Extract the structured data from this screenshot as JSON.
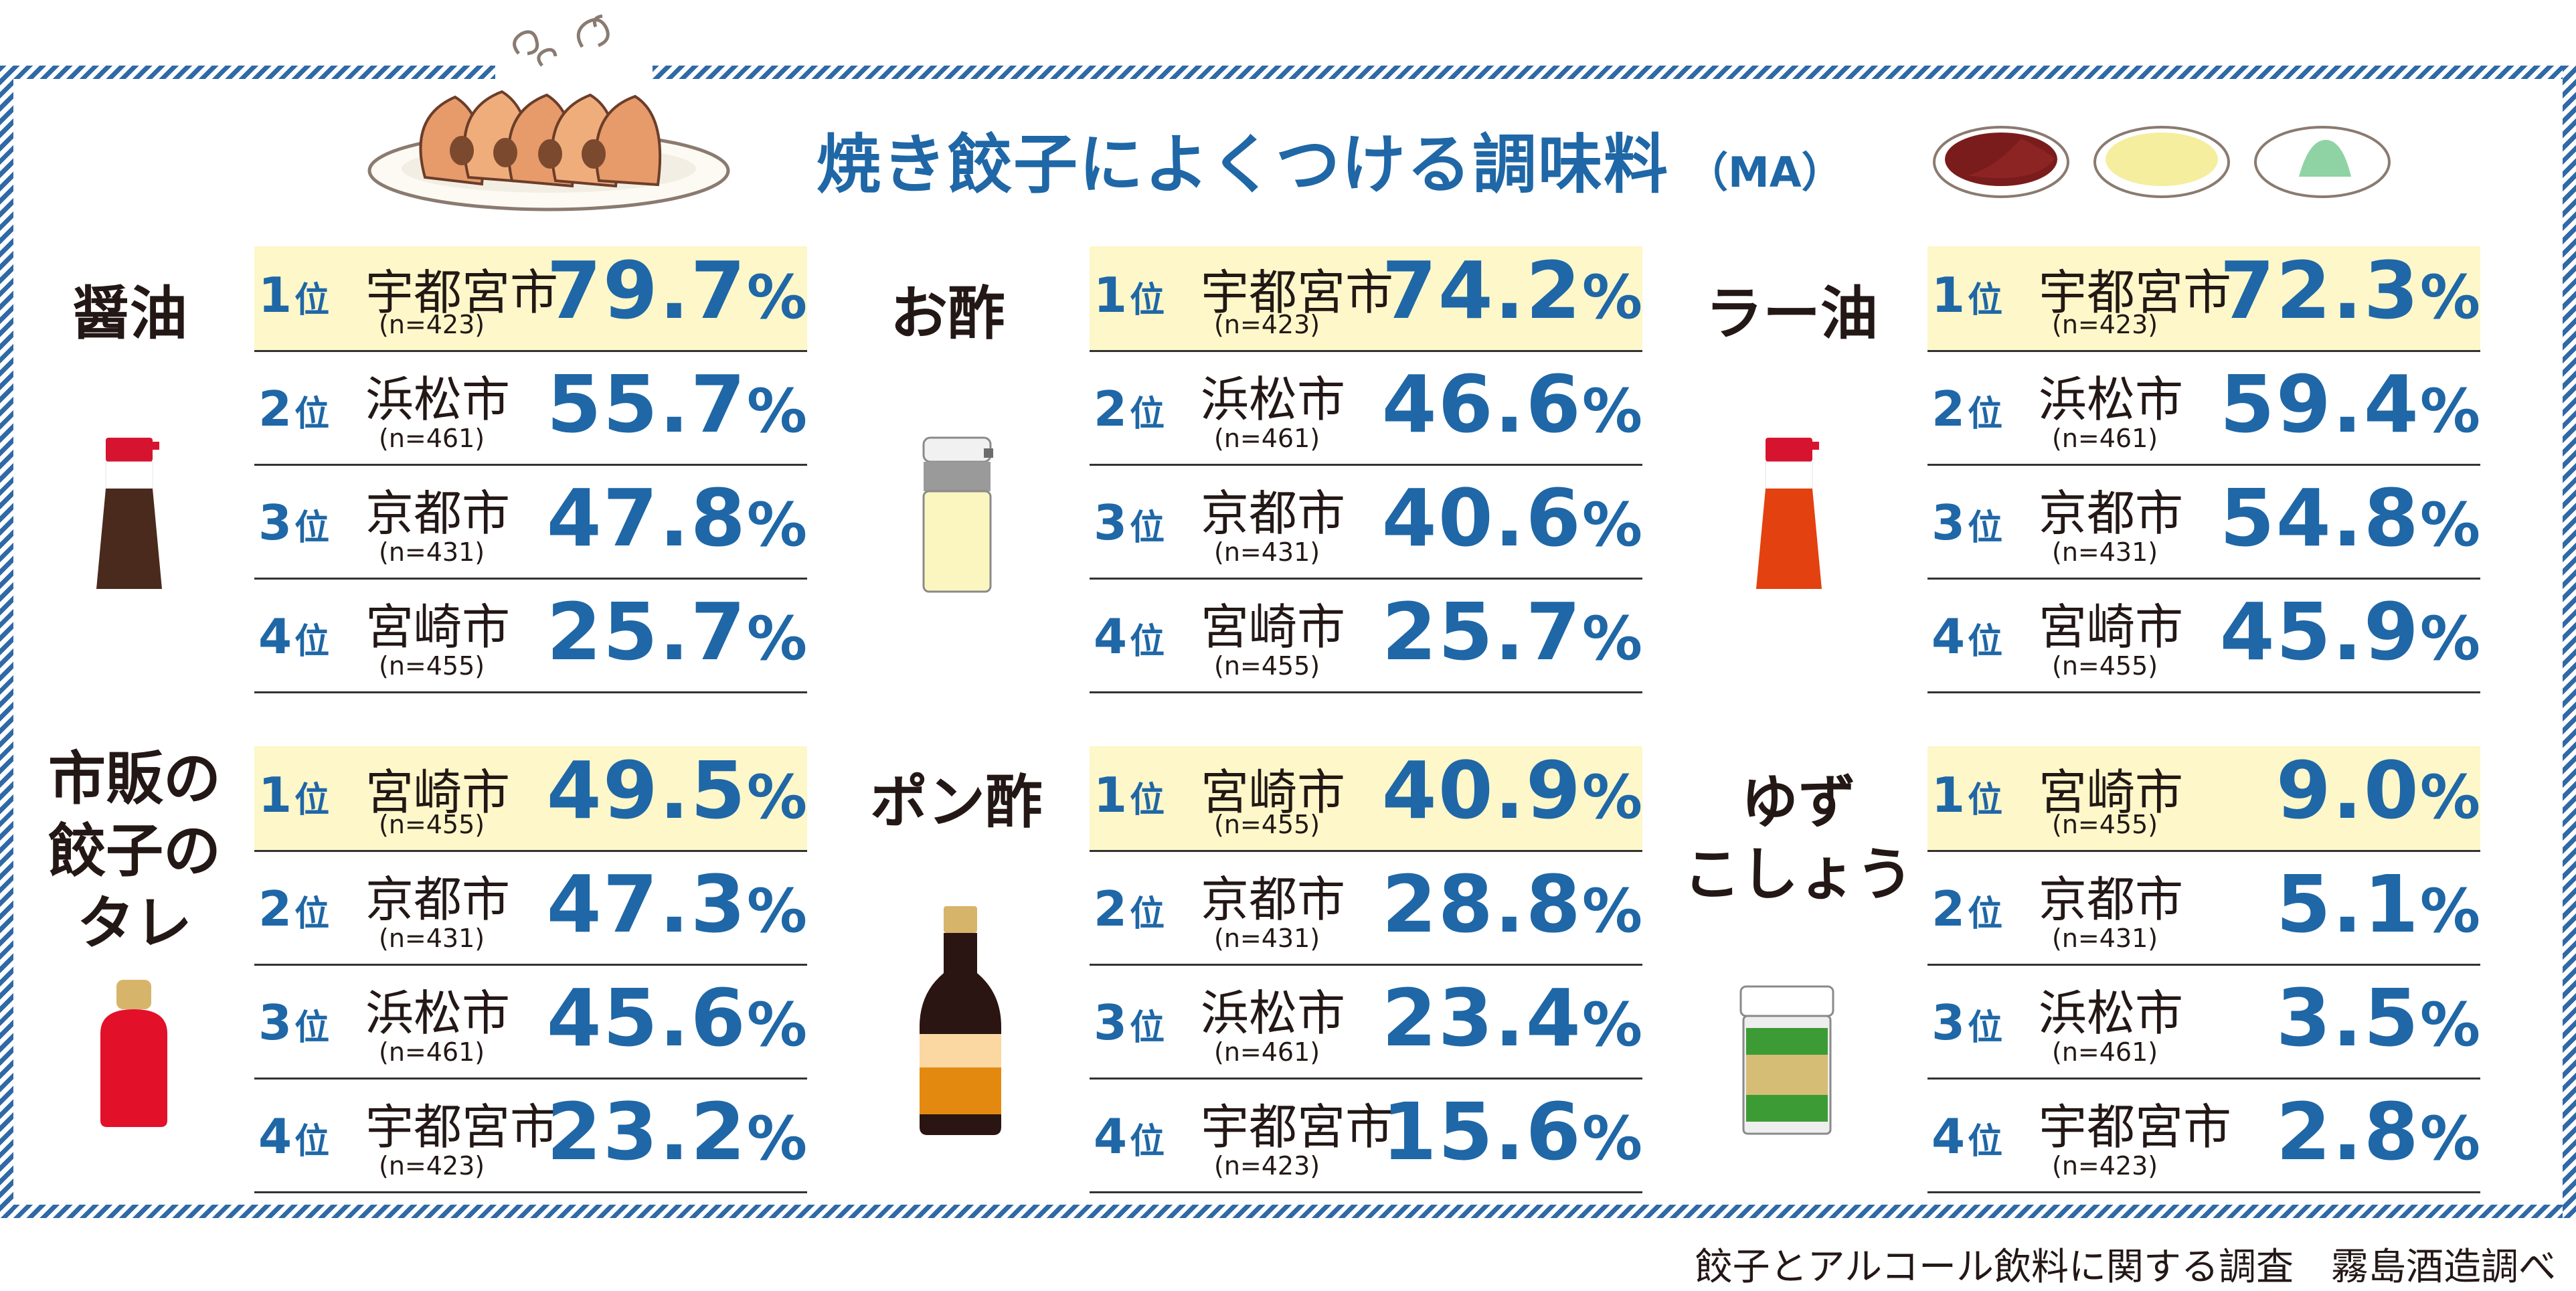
{
  "title": "焼き餃子によくつける調味料",
  "title_sub": "（MA）",
  "footer": "餃子とアルコール飲料に関する調査　霧島酒造調べ",
  "colors": {
    "accent": "#1f67a6",
    "highlight": "#fdf7c9",
    "stripe": "#2f69a6"
  },
  "rank_suffix": "位",
  "pct_suffix": "%",
  "chart_data": [
    {
      "type": "table",
      "category": "醤油",
      "label_lines": [
        "醤油"
      ],
      "rows": [
        {
          "rank": "1",
          "city": "宇都宮市",
          "n": "(n=423)",
          "value": "79.7"
        },
        {
          "rank": "2",
          "city": "浜松市",
          "n": "(n=461)",
          "value": "55.7"
        },
        {
          "rank": "3",
          "city": "京都市",
          "n": "(n=431)",
          "value": "47.8"
        },
        {
          "rank": "4",
          "city": "宮崎市",
          "n": "(n=455)",
          "value": "25.7"
        }
      ]
    },
    {
      "type": "table",
      "category": "お酢",
      "label_lines": [
        "お酢"
      ],
      "rows": [
        {
          "rank": "1",
          "city": "宇都宮市",
          "n": "(n=423)",
          "value": "74.2"
        },
        {
          "rank": "2",
          "city": "浜松市",
          "n": "(n=461)",
          "value": "46.6"
        },
        {
          "rank": "3",
          "city": "京都市",
          "n": "(n=431)",
          "value": "40.6"
        },
        {
          "rank": "4",
          "city": "宮崎市",
          "n": "(n=455)",
          "value": "25.7"
        }
      ]
    },
    {
      "type": "table",
      "category": "ラー油",
      "label_lines": [
        "ラー油"
      ],
      "rows": [
        {
          "rank": "1",
          "city": "宇都宮市",
          "n": "(n=423)",
          "value": "72.3"
        },
        {
          "rank": "2",
          "city": "浜松市",
          "n": "(n=461)",
          "value": "59.4"
        },
        {
          "rank": "3",
          "city": "京都市",
          "n": "(n=431)",
          "value": "54.8"
        },
        {
          "rank": "4",
          "city": "宮崎市",
          "n": "(n=455)",
          "value": "45.9"
        }
      ]
    },
    {
      "type": "table",
      "category": "市販の餃子のタレ",
      "label_lines": [
        "市販の",
        "餃子の",
        "タレ"
      ],
      "rows": [
        {
          "rank": "1",
          "city": "宮崎市",
          "n": "(n=455)",
          "value": "49.5"
        },
        {
          "rank": "2",
          "city": "京都市",
          "n": "(n=431)",
          "value": "47.3"
        },
        {
          "rank": "3",
          "city": "浜松市",
          "n": "(n=461)",
          "value": "45.6"
        },
        {
          "rank": "4",
          "city": "宇都宮市",
          "n": "(n=423)",
          "value": "23.2"
        }
      ]
    },
    {
      "type": "table",
      "category": "ポン酢",
      "label_lines": [
        "ポン酢"
      ],
      "rows": [
        {
          "rank": "1",
          "city": "宮崎市",
          "n": "(n=455)",
          "value": "40.9"
        },
        {
          "rank": "2",
          "city": "京都市",
          "n": "(n=431)",
          "value": "28.8"
        },
        {
          "rank": "3",
          "city": "浜松市",
          "n": "(n=461)",
          "value": "23.4"
        },
        {
          "rank": "4",
          "city": "宇都宮市",
          "n": "(n=423)",
          "value": "15.6"
        }
      ]
    },
    {
      "type": "table",
      "category": "ゆずこしょう",
      "label_lines": [
        "ゆず",
        "こしょう"
      ],
      "rows": [
        {
          "rank": "1",
          "city": "宮崎市",
          "n": "(n=455)",
          "value": "9.0"
        },
        {
          "rank": "2",
          "city": "京都市",
          "n": "(n=431)",
          "value": "5.1"
        },
        {
          "rank": "3",
          "city": "浜松市",
          "n": "(n=461)",
          "value": "3.5"
        },
        {
          "rank": "4",
          "city": "宇都宮市",
          "n": "(n=423)",
          "value": "2.8"
        }
      ]
    }
  ]
}
